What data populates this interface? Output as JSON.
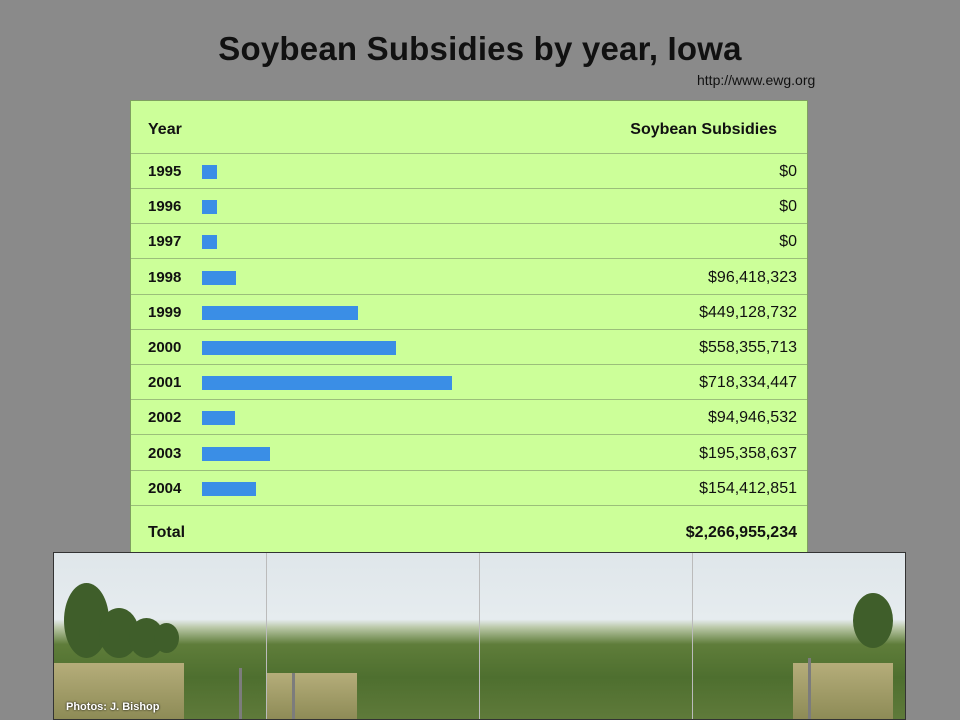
{
  "title": "Soybean Subsidies by year, Iowa",
  "source": "http://www.ewg.org",
  "photo_credit": "Photos: J. Bishop",
  "chart_data": {
    "type": "bar",
    "orientation": "horizontal",
    "headers": {
      "year": "Year",
      "value": "Soybean Subsidies"
    },
    "categories": [
      "1995",
      "1996",
      "1997",
      "1998",
      "1999",
      "2000",
      "2001",
      "2002",
      "2003",
      "2004"
    ],
    "values": [
      0,
      0,
      0,
      96418323,
      449128732,
      558355713,
      718334447,
      94946532,
      195358637,
      154412851
    ],
    "value_labels": [
      "$0",
      "$0",
      "$0",
      "$96,418,323",
      "$449,128,732",
      "$558,355,713",
      "$718,334,447",
      "$94,946,532",
      "$195,358,637",
      "$154,412,851"
    ],
    "total_label": "Total",
    "total_value": "$2,266,955,234",
    "bar_color": "#3a8ee6",
    "background_color": "#ccff99"
  }
}
